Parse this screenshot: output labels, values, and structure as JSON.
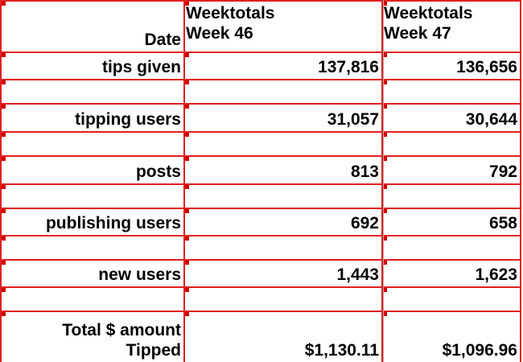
{
  "header": {
    "row_label": "Date",
    "columns": [
      [
        "Weektotals",
        "Week 46"
      ],
      [
        "Weektotals",
        "Week 47"
      ]
    ]
  },
  "rows": [
    {
      "label": [
        "tips given"
      ],
      "values": [
        "137,816",
        "136,656"
      ]
    },
    {
      "label": [
        "tipping users"
      ],
      "values": [
        "31,057",
        "30,644"
      ]
    },
    {
      "label": [
        "posts"
      ],
      "values": [
        "813",
        "792"
      ]
    },
    {
      "label": [
        "publishing users"
      ],
      "values": [
        "692",
        "658"
      ]
    },
    {
      "label": [
        "new users"
      ],
      "values": [
        "1,443",
        "1,623"
      ]
    },
    {
      "label": [
        "Total $ amount",
        "Tipped"
      ],
      "values": [
        "$1,130.11",
        "$1,096.96"
      ]
    }
  ]
}
